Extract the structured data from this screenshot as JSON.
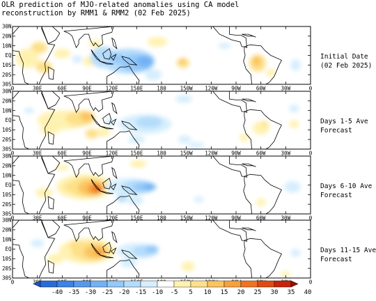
{
  "title": {
    "line1": "OLR prediction of MJO-related anomalies using CA model",
    "line2": "reconstruction by RMM1 & RMM2 (02 Feb 2025)"
  },
  "lat_labels": [
    "30N",
    "20N",
    "10N",
    "EQ",
    "10S",
    "20S",
    "30S"
  ],
  "lon_labels": [
    "0",
    "30E",
    "60E",
    "90E",
    "120E",
    "150E",
    "180",
    "150W",
    "120W",
    "90W",
    "60W",
    "30W",
    "0"
  ],
  "panels": [
    {
      "label_line1": "Initial Date",
      "label_line2": "(02 Feb 2025)"
    },
    {
      "label_line1": "Days 1-5 Ave",
      "label_line2": "Forecast"
    },
    {
      "label_line1": "Days 6-10 Ave",
      "label_line2": "Forecast"
    },
    {
      "label_line1": "Days 11-15 Ave",
      "label_line2": "Forecast"
    }
  ],
  "colorbar": {
    "labels": [
      "-40",
      "-35",
      "-30",
      "-25",
      "-20",
      "-15",
      "-10",
      "-5",
      "5",
      "10",
      "15",
      "20",
      "25",
      "30",
      "35",
      "40"
    ],
    "colors": [
      "#1a55c8",
      "#2a6bd8",
      "#3d82e6",
      "#569aee",
      "#72b2f4",
      "#93c8f8",
      "#b4dcfb",
      "#d6eefd",
      "#ffffff",
      "#fff2b0",
      "#fde08a",
      "#fbc45e",
      "#f7a03c",
      "#ef7422",
      "#e04a12",
      "#c8220a",
      "#a00a04"
    ]
  }
}
